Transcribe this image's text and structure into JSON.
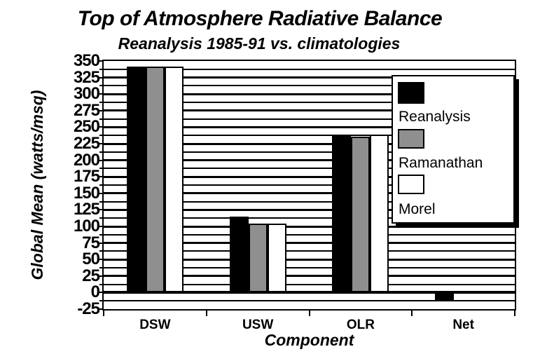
{
  "chart_data": {
    "type": "bar",
    "title": "Top of Atmosphere Radiative Balance",
    "subtitle": "Reanalysis 1985-91 vs. climatologies",
    "xlabel": "Component",
    "ylabel": "Global Mean (watts/msq)",
    "categories": [
      "DSW",
      "USW",
      "OLR",
      "Net"
    ],
    "series": [
      {
        "name": "Reanalysis",
        "color": "#000000",
        "values": [
          342,
          115,
          237,
          -13
        ]
      },
      {
        "name": "Ramanathan",
        "color": "#8f8f8f",
        "values": [
          341,
          104,
          236,
          0
        ]
      },
      {
        "name": "Morel",
        "color": "#ffffff",
        "values": [
          341,
          104,
          239,
          0
        ]
      }
    ],
    "ylim": [
      -25,
      350
    ],
    "ytick_step": 25,
    "grid_step": 12.5,
    "yticks": [
      350,
      325,
      300,
      275,
      250,
      225,
      200,
      175,
      150,
      125,
      100,
      75,
      50,
      25,
      0,
      -25
    ],
    "grid": true,
    "legend_position": "inside-right",
    "bar_border_color": "#000000",
    "background_color": "#ffffff"
  }
}
